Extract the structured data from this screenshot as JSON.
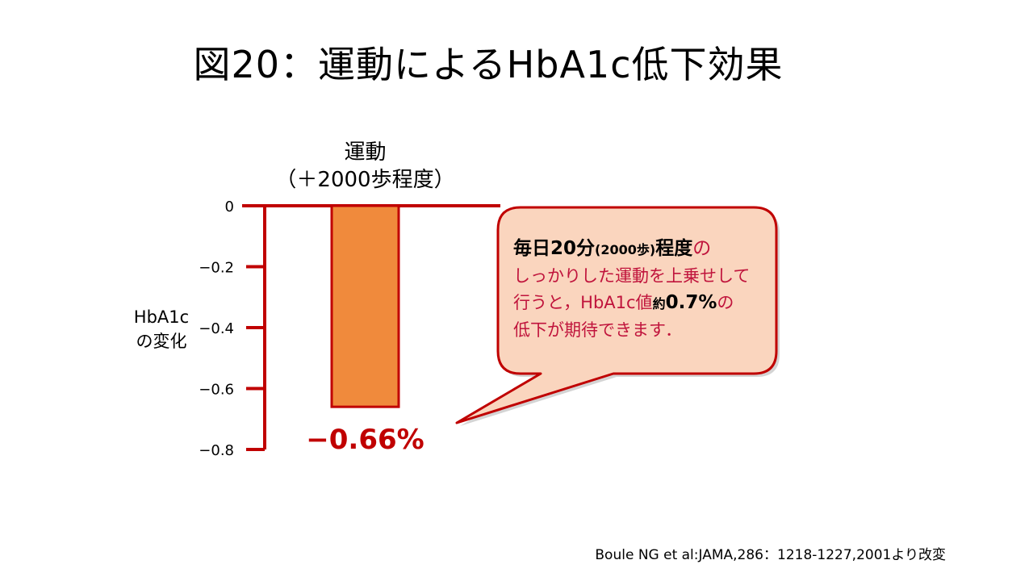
{
  "title": "図20：運動によるHbA1c低下効果",
  "chart_data": {
    "type": "bar",
    "categories": [
      "運動\n（＋2000歩程度）"
    ],
    "category_lines": [
      "運動",
      "（＋2000歩程度）"
    ],
    "values": [
      -0.66
    ],
    "value_label": "−0.66%",
    "ylabel_lines": [
      "HbA1c",
      "の変化"
    ],
    "ylim": [
      -0.8,
      0
    ],
    "yticks": [
      0,
      -0.2,
      -0.4,
      -0.6,
      -0.8
    ],
    "ytick_labels": [
      "0",
      "−0.2",
      "−0.4",
      "−0.6",
      "−0.8"
    ],
    "grid": false,
    "colors": {
      "bar_fill": "#f08a3c",
      "bar_stroke": "#c00000",
      "axis": "#c00000",
      "value_label": "#c00000"
    }
  },
  "callout": {
    "seg1": "毎日20分",
    "seg2": "(2000歩)",
    "seg3": "程度",
    "seg4": "の",
    "line2": "しっかりした運動を上乗せして",
    "seg5": "行うと，HbA1c値",
    "seg6": "約",
    "seg7": "0.7%",
    "seg8": "の",
    "line4": "低下が期待できます．",
    "fill": "#fad5be",
    "border": "#c00000"
  },
  "citation": "Boule NG et al:JAMA,286：1218-1227,2001より改変"
}
